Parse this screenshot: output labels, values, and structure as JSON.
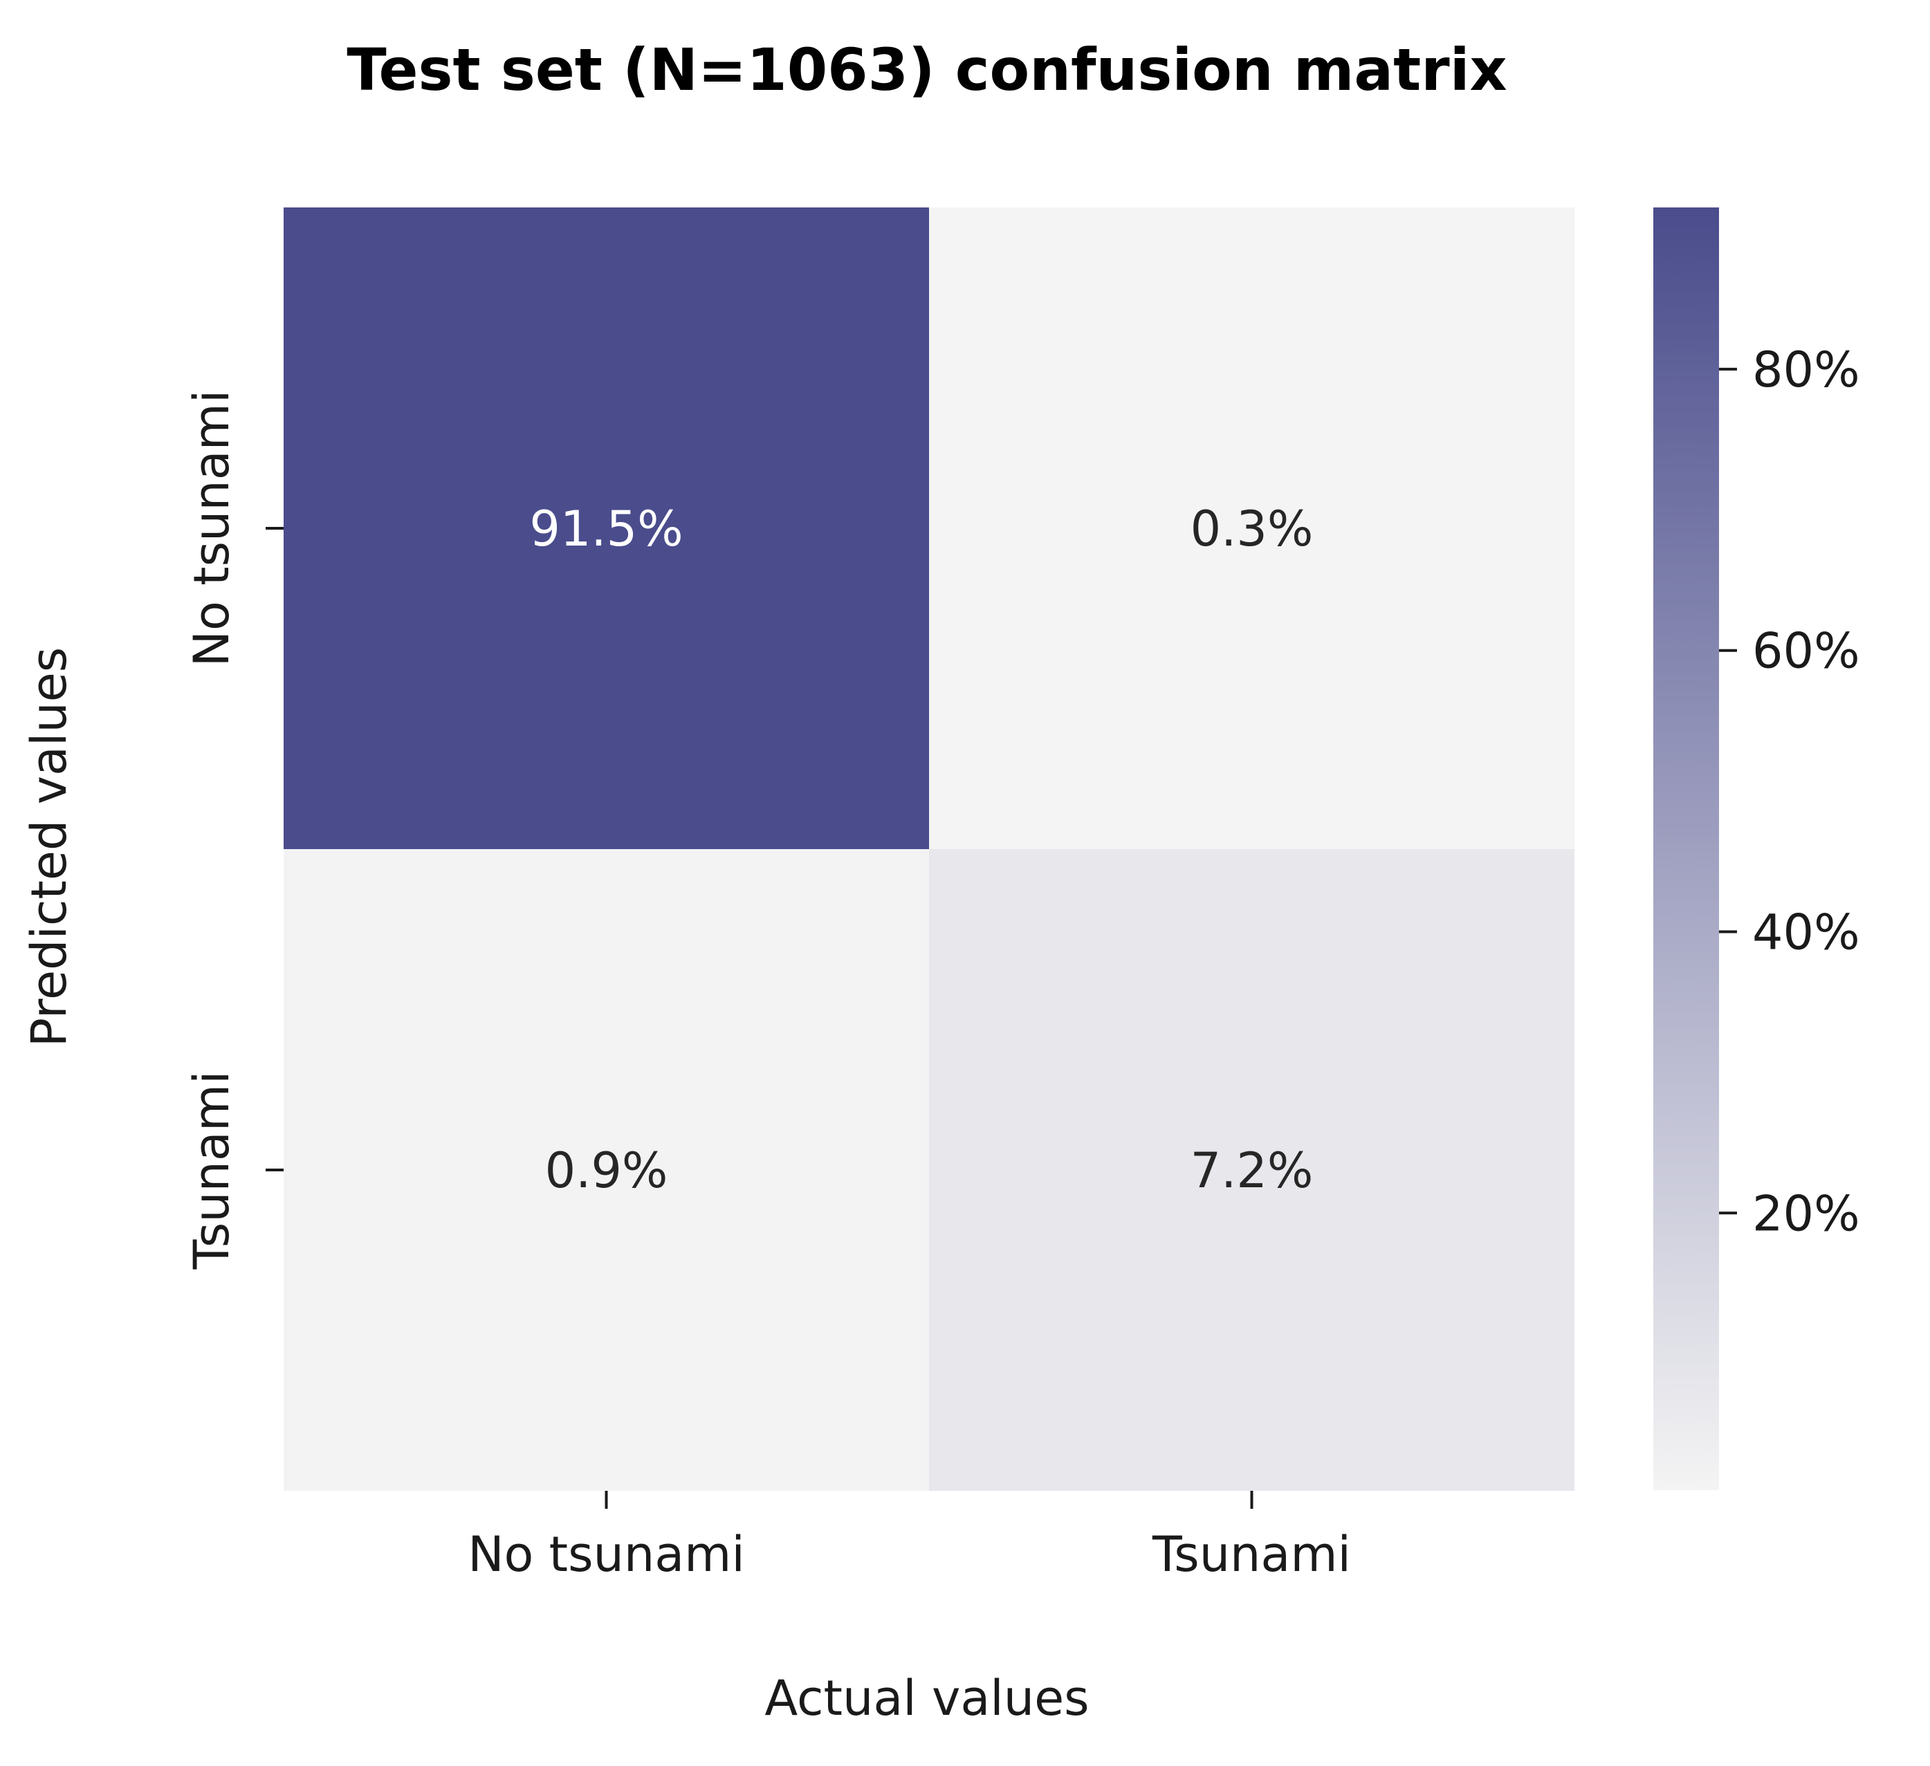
{
  "chart_data": {
    "type": "heatmap",
    "title": "Test set (N=1063) confusion matrix",
    "xlabel": "Actual values",
    "ylabel": "Predicted values",
    "x_categories": [
      "No tsunami",
      "Tsunami"
    ],
    "y_categories": [
      "No tsunami",
      "Tsunami"
    ],
    "values": [
      [
        91.5,
        0.3
      ],
      [
        0.9,
        7.2
      ]
    ],
    "cell_labels": [
      [
        "91.5%",
        "0.3%"
      ],
      [
        "0.9%",
        "7.2%"
      ]
    ],
    "colorbar": {
      "range": [
        0.3,
        91.5
      ],
      "ticks": [
        20,
        40,
        60,
        80
      ],
      "tick_labels": [
        "20%",
        "40%",
        "60%",
        "80%"
      ],
      "color_low": "#f4f4f4",
      "color_high": "#4a4c8c"
    },
    "grid": false
  }
}
